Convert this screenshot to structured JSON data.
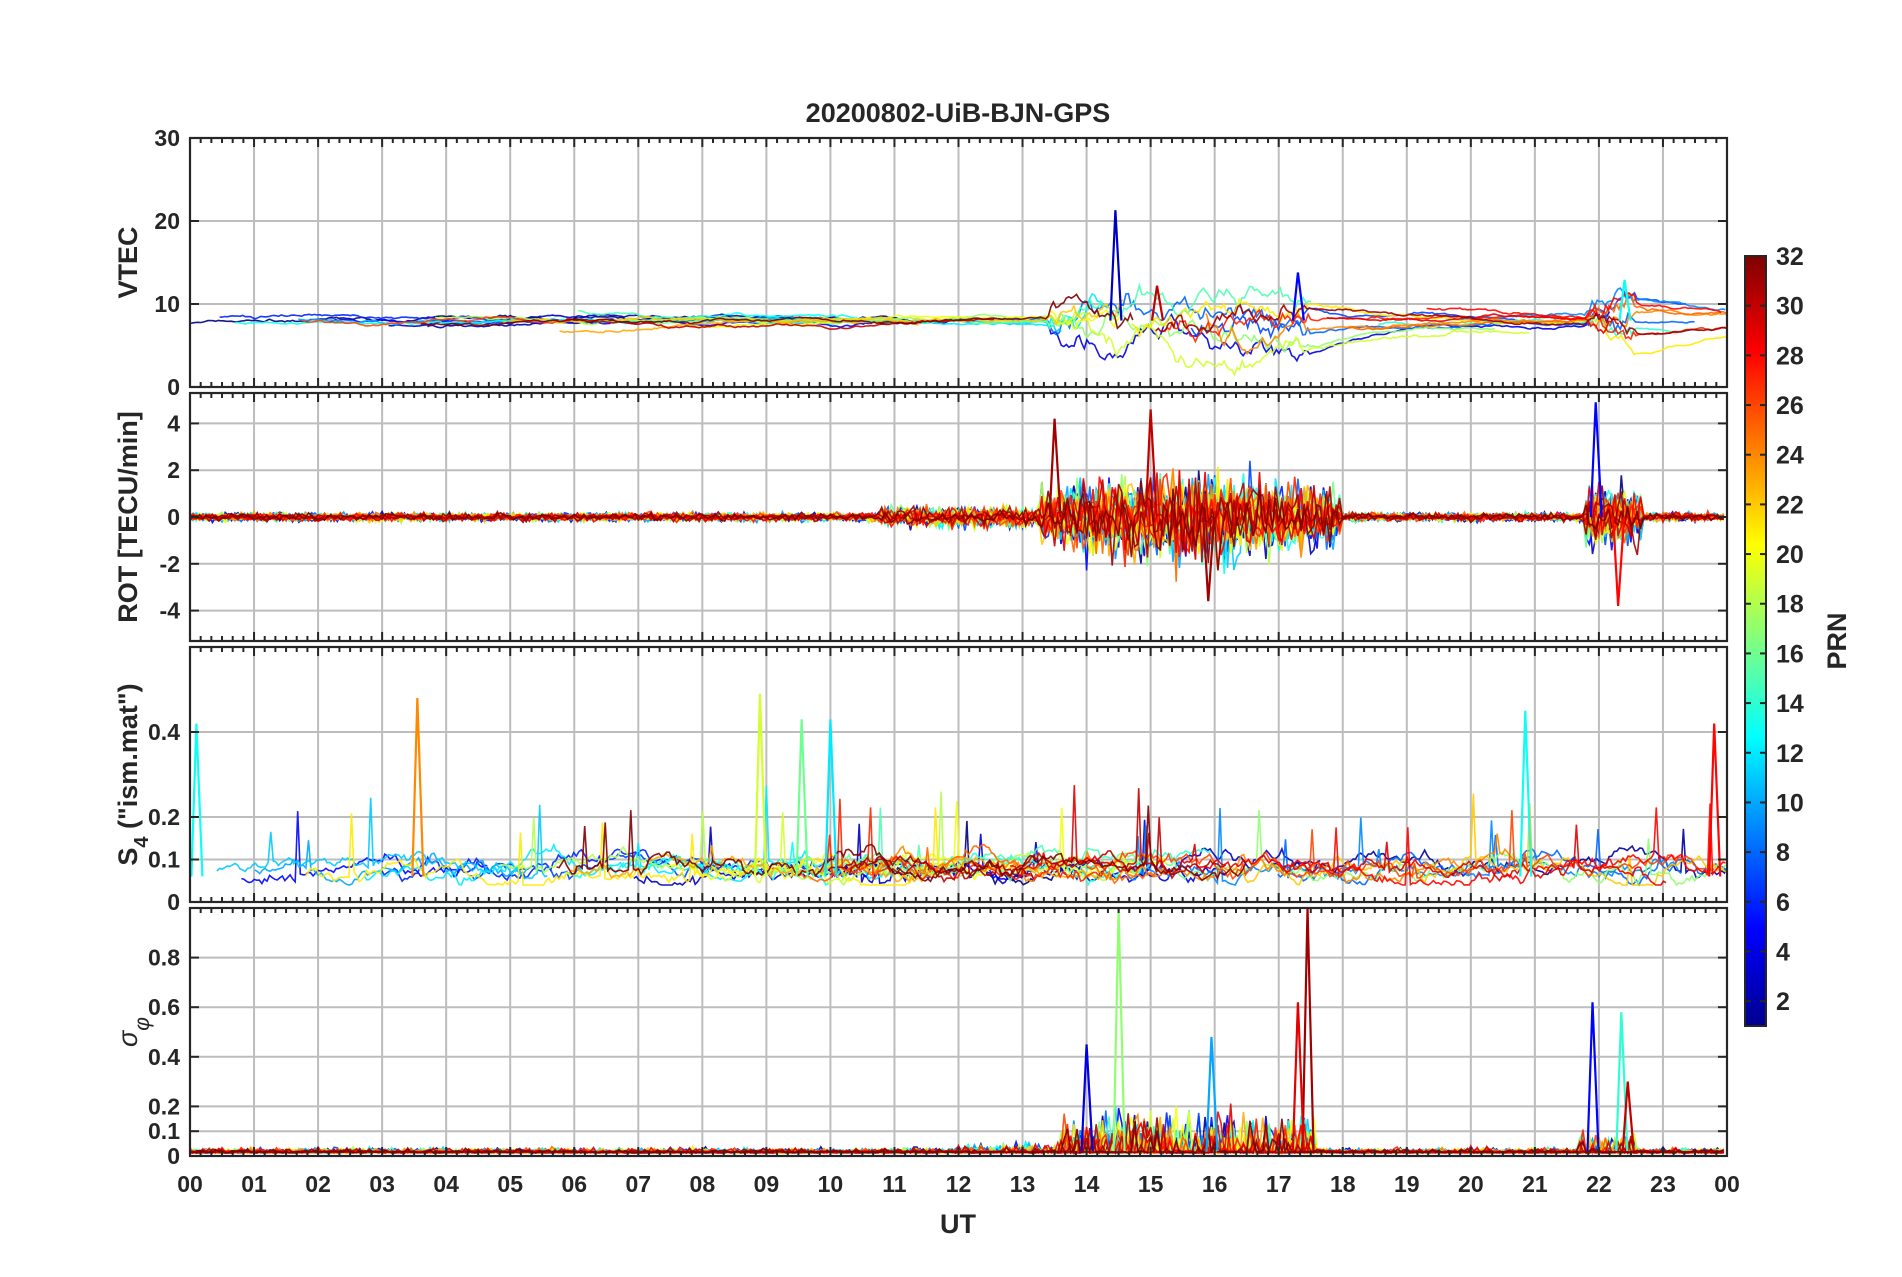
{
  "chart_data": {
    "title": "20200802-UiB-BJN-GPS",
    "xlabel": "UT",
    "x_tick_labels": [
      "00",
      "01",
      "02",
      "03",
      "04",
      "05",
      "06",
      "07",
      "08",
      "09",
      "10",
      "11",
      "12",
      "13",
      "14",
      "15",
      "16",
      "17",
      "18",
      "19",
      "20",
      "21",
      "22",
      "23",
      "00"
    ],
    "xlim": [
      0,
      24
    ],
    "grid": true,
    "type": "line",
    "series_count": 32,
    "colorbar": {
      "label": "PRN",
      "range": [
        1,
        32
      ],
      "tick_labels": [
        "2",
        "4",
        "6",
        "8",
        "10",
        "12",
        "14",
        "16",
        "18",
        "20",
        "22",
        "24",
        "26",
        "28",
        "30",
        "32"
      ],
      "colormap": "jet",
      "placement": "right"
    },
    "panels": [
      {
        "id": "vtec",
        "ylabel": "VTEC",
        "ylim": [
          0,
          30
        ],
        "ytick_values": [
          0,
          10,
          20,
          30
        ],
        "ytick_labels": [
          "0",
          "10",
          "20",
          "30"
        ],
        "baseline": 8,
        "features": [
          {
            "x": 14.45,
            "y": 21.3,
            "prn": 3
          },
          {
            "x": 17.3,
            "y": 13.8,
            "prn": 5
          },
          {
            "x": 22.4,
            "y": 12.9,
            "prn": 13
          },
          {
            "x": 15.1,
            "y": 12.2,
            "prn": 30
          }
        ]
      },
      {
        "id": "rot",
        "ylabel": "ROT [TECU/min]",
        "ylim": [
          -5.3,
          5.3
        ],
        "ytick_values": [
          -4,
          -2,
          0,
          2,
          4
        ],
        "ytick_labels": [
          "-4",
          "-2",
          "0",
          "2",
          "4"
        ],
        "disturbed_intervals": [
          [
            13.3,
            18.0
          ],
          [
            21.8,
            22.7
          ]
        ],
        "features": [
          {
            "x": 15.0,
            "y": 4.6,
            "prn": 30
          },
          {
            "x": 13.5,
            "y": 4.2,
            "prn": 31
          },
          {
            "x": 21.95,
            "y": 4.9,
            "prn": 5
          },
          {
            "x": 15.9,
            "y": -3.6,
            "prn": 31
          },
          {
            "x": 22.3,
            "y": -3.8,
            "prn": 28
          }
        ]
      },
      {
        "id": "s4",
        "ylabel": "S4 (\"ism.mat\")",
        "ylim": [
          0,
          0.6
        ],
        "ytick_values": [
          0,
          0.1,
          0.2,
          0.4
        ],
        "ytick_labels": [
          "0",
          "0.1",
          "0.2",
          "0.4"
        ],
        "baseline": 0.06,
        "features": [
          {
            "x": 3.55,
            "y": 0.48,
            "prn": 24
          },
          {
            "x": 8.9,
            "y": 0.49,
            "prn": 19
          },
          {
            "x": 20.85,
            "y": 0.45,
            "prn": 13
          },
          {
            "x": 23.8,
            "y": 0.42,
            "prn": 28
          },
          {
            "x": 0.1,
            "y": 0.42,
            "prn": 13
          },
          {
            "x": 9.55,
            "y": 0.43,
            "prn": 16
          },
          {
            "x": 10.0,
            "y": 0.43,
            "prn": 12
          }
        ]
      },
      {
        "id": "sigma-phi",
        "ylabel": "σφ",
        "ylim": [
          0,
          1.0
        ],
        "ytick_values": [
          0,
          0.1,
          0.2,
          0.4,
          0.6,
          0.8
        ],
        "ytick_labels": [
          "0",
          "0.1",
          "0.2",
          "0.4",
          "0.6",
          "0.8"
        ],
        "baseline": 0.02,
        "features": [
          {
            "x": 14.5,
            "y": 1.0,
            "prn": 17
          },
          {
            "x": 17.45,
            "y": 1.0,
            "prn": 31
          },
          {
            "x": 17.3,
            "y": 0.62,
            "prn": 29
          },
          {
            "x": 21.9,
            "y": 0.62,
            "prn": 5
          },
          {
            "x": 22.35,
            "y": 0.58,
            "prn": 14
          },
          {
            "x": 15.95,
            "y": 0.48,
            "prn": 10
          },
          {
            "x": 14.0,
            "y": 0.45,
            "prn": 4
          },
          {
            "x": 22.45,
            "y": 0.3,
            "prn": 30
          }
        ]
      }
    ]
  }
}
